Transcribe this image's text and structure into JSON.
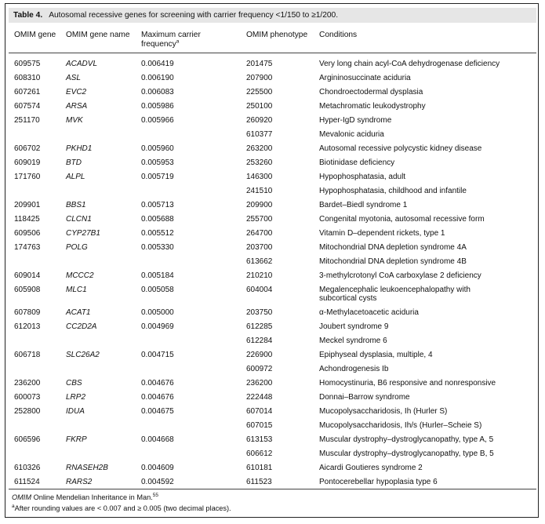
{
  "caption": {
    "label": "Table 4.",
    "text": "Autosomal recessive genes for screening with carrier frequency <1/150 to ≥1/200."
  },
  "headers": {
    "omim_gene": "OMIM gene",
    "gene_name": "OMIM gene name",
    "max_freq_line1": "Maximum carrier",
    "max_freq_line2": "frequency",
    "max_freq_sup": "a",
    "phenotype": "OMIM phenotype",
    "conditions": "Conditions"
  },
  "rows": [
    {
      "omim": "609575",
      "gene": "ACADVL",
      "freq": "0.006419",
      "pheno": "201475",
      "cond": "Very long chain acyl-CoA dehydrogenase deficiency"
    },
    {
      "omim": "608310",
      "gene": "ASL",
      "freq": "0.006190",
      "pheno": "207900",
      "cond": "Argininosuccinate aciduria"
    },
    {
      "omim": "607261",
      "gene": "EVC2",
      "freq": "0.006083",
      "pheno": "225500",
      "cond": "Chondroectodermal dysplasia"
    },
    {
      "omim": "607574",
      "gene": "ARSA",
      "freq": "0.005986",
      "pheno": "250100",
      "cond": "Metachromatic leukodystrophy"
    },
    {
      "omim": "251170",
      "gene": "MVK",
      "freq": "0.005966",
      "pheno": "260920",
      "cond": "Hyper-IgD syndrome"
    },
    {
      "omim": "",
      "gene": "",
      "freq": "",
      "pheno": "610377",
      "cond": "Mevalonic aciduria"
    },
    {
      "omim": "606702",
      "gene": "PKHD1",
      "freq": "0.005960",
      "pheno": "263200",
      "cond": "Autosomal recessive polycystic kidney disease"
    },
    {
      "omim": "609019",
      "gene": "BTD",
      "freq": "0.005953",
      "pheno": "253260",
      "cond": "Biotinidase deficiency"
    },
    {
      "omim": "171760",
      "gene": "ALPL",
      "freq": "0.005719",
      "pheno": "146300",
      "cond": "Hypophosphatasia, adult"
    },
    {
      "omim": "",
      "gene": "",
      "freq": "",
      "pheno": "241510",
      "cond": "Hypophosphatasia, childhood and infantile"
    },
    {
      "omim": "209901",
      "gene": "BBS1",
      "freq": "0.005713",
      "pheno": "209900",
      "cond": "Bardet–Biedl syndrome 1"
    },
    {
      "omim": "118425",
      "gene": "CLCN1",
      "freq": "0.005688",
      "pheno": "255700",
      "cond": "Congenital myotonia, autosomal recessive form"
    },
    {
      "omim": "609506",
      "gene": "CYP27B1",
      "freq": "0.005512",
      "pheno": "264700",
      "cond": "Vitamin D–dependent rickets, type 1"
    },
    {
      "omim": "174763",
      "gene": "POLG",
      "freq": "0.005330",
      "pheno": "203700",
      "cond": "Mitochondrial DNA depletion syndrome 4A"
    },
    {
      "omim": "",
      "gene": "",
      "freq": "",
      "pheno": "613662",
      "cond": "Mitochondrial DNA depletion syndrome 4B"
    },
    {
      "omim": "609014",
      "gene": "MCCC2",
      "freq": "0.005184",
      "pheno": "210210",
      "cond": "3-methylcrotonyl CoA carboxylase 2 deficiency"
    },
    {
      "omim": "605908",
      "gene": "MLC1",
      "freq": "0.005058",
      "pheno": "604004",
      "cond": "Megalencephalic leukoencephalopathy with",
      "cond2": "subcortical cysts"
    },
    {
      "omim": "607809",
      "gene": "ACAT1",
      "freq": "0.005000",
      "pheno": "203750",
      "cond": "α-Methylacetoacetic aciduria"
    },
    {
      "omim": "612013",
      "gene": "CC2D2A",
      "freq": "0.004969",
      "pheno": "612285",
      "cond": "Joubert syndrome 9"
    },
    {
      "omim": "",
      "gene": "",
      "freq": "",
      "pheno": "612284",
      "cond": "Meckel syndrome 6"
    },
    {
      "omim": "606718",
      "gene": "SLC26A2",
      "freq": "0.004715",
      "pheno": "226900",
      "cond": "Epiphyseal dysplasia, multiple, 4"
    },
    {
      "omim": "",
      "gene": "",
      "freq": "",
      "pheno": "600972",
      "cond": "Achondrogenesis Ib"
    },
    {
      "omim": "236200",
      "gene": "CBS",
      "freq": "0.004676",
      "pheno": "236200",
      "cond": "Homocystinuria, B6 responsive and nonresponsive"
    },
    {
      "omim": "600073",
      "gene": "LRP2",
      "freq": "0.004676",
      "pheno": "222448",
      "cond": "Donnai–Barrow syndrome"
    },
    {
      "omim": "252800",
      "gene": "IDUA",
      "freq": "0.004675",
      "pheno": "607014",
      "cond": "Mucopolysaccharidosis, Ih (Hurler S)"
    },
    {
      "omim": "",
      "gene": "",
      "freq": "",
      "pheno": "607015",
      "cond": "Mucopolysaccharidosis, Ih/s (Hurler–Scheie S)"
    },
    {
      "omim": "606596",
      "gene": "FKRP",
      "freq": "0.004668",
      "pheno": "613153",
      "cond": "Muscular dystrophy–dystroglycanopathy, type A, 5"
    },
    {
      "omim": "",
      "gene": "",
      "freq": "",
      "pheno": "606612",
      "cond": "Muscular dystrophy–dystroglycanopathy, type B, 5"
    },
    {
      "omim": "610326",
      "gene": "RNASEH2B",
      "freq": "0.004609",
      "pheno": "610181",
      "cond": "Aicardi Goutieres syndrome 2"
    },
    {
      "omim": "611524",
      "gene": "RARS2",
      "freq": "0.004592",
      "pheno": "611523",
      "cond": "Pontocerebellar hypoplasia type 6"
    }
  ],
  "footnotes": {
    "omim_abbrev": "OMIM",
    "omim_text": " Online Mendelian Inheritance in Man.",
    "omim_ref": "55",
    "a_marker": "a",
    "a_text": "After rounding values are < 0.007 and ≥ 0.005 (two decimal places)."
  }
}
